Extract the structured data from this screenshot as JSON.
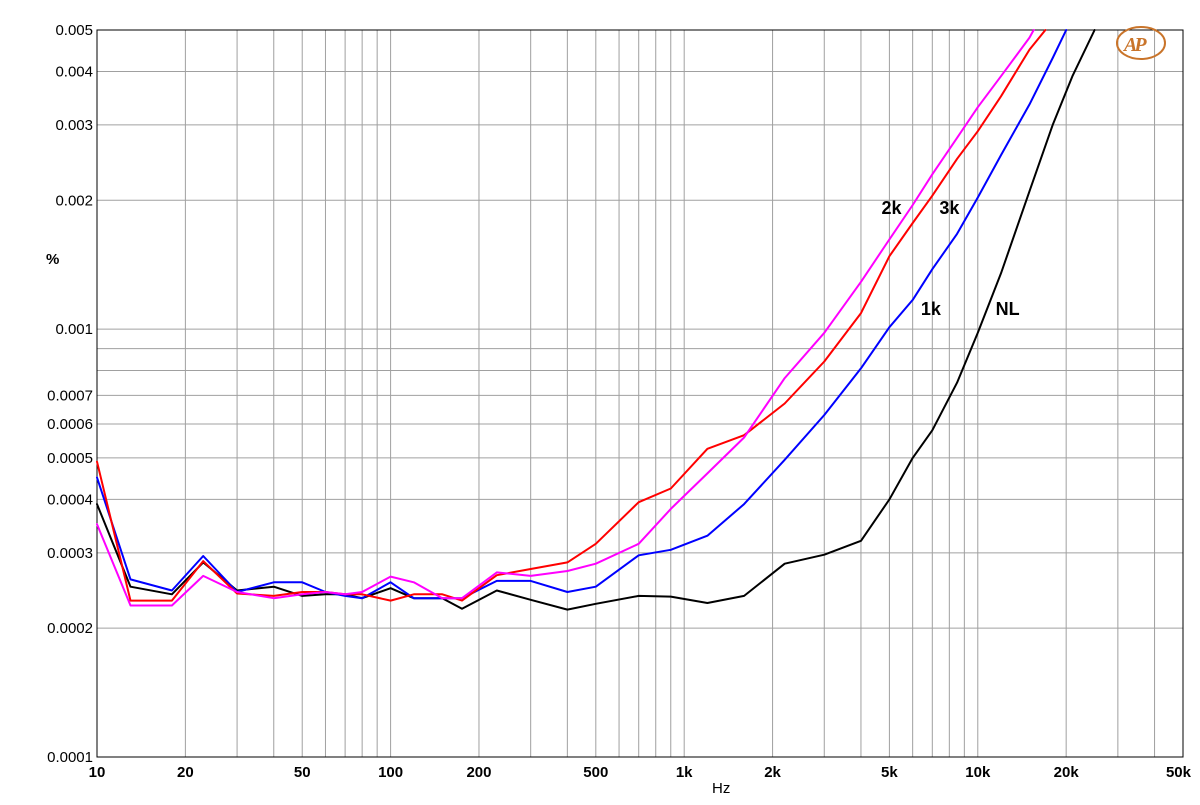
{
  "chart_data": {
    "type": "line",
    "title": "",
    "xlabel": "Hz",
    "ylabel": "%",
    "x_scale": "log",
    "y_scale": "log",
    "xlim": [
      10,
      50000
    ],
    "ylim": [
      0.0001,
      0.005
    ],
    "grid": true,
    "x_ticks": [
      {
        "value": 10,
        "label": "10"
      },
      {
        "value": 20,
        "label": "20"
      },
      {
        "value": 50,
        "label": "50"
      },
      {
        "value": 100,
        "label": "100"
      },
      {
        "value": 200,
        "label": "200"
      },
      {
        "value": 500,
        "label": "500"
      },
      {
        "value": 1000,
        "label": "1k"
      },
      {
        "value": 2000,
        "label": "2k"
      },
      {
        "value": 5000,
        "label": "5k"
      },
      {
        "value": 10000,
        "label": "10k"
      },
      {
        "value": 20000,
        "label": "20k"
      },
      {
        "value": 50000,
        "label": "50k"
      }
    ],
    "y_ticks": [
      {
        "value": 0.005,
        "label": "0.005"
      },
      {
        "value": 0.004,
        "label": "0.004"
      },
      {
        "value": 0.003,
        "label": "0.003"
      },
      {
        "value": 0.002,
        "label": "0.002"
      },
      {
        "value": 0.001,
        "label": "0.001"
      },
      {
        "value": 0.0007,
        "label": "0.0007"
      },
      {
        "value": 0.0006,
        "label": "0.0006"
      },
      {
        "value": 0.0005,
        "label": "0.0005"
      },
      {
        "value": 0.0004,
        "label": "0.0004"
      },
      {
        "value": 0.0003,
        "label": "0.0003"
      },
      {
        "value": 0.0002,
        "label": "0.0002"
      },
      {
        "value": 0.0001,
        "label": "0.0001"
      }
    ],
    "series": [
      {
        "name": "NL",
        "color": "#000000",
        "label_at": [
          11500,
          0.00108
        ],
        "points": [
          [
            10,
            0.00039
          ],
          [
            13,
            0.00025
          ],
          [
            18,
            0.00024
          ],
          [
            23,
            0.000285
          ],
          [
            30,
            0.000245
          ],
          [
            40,
            0.00025
          ],
          [
            50,
            0.000238
          ],
          [
            60,
            0.00024
          ],
          [
            70,
            0.00024
          ],
          [
            80,
            0.000235
          ],
          [
            100,
            0.000248
          ],
          [
            120,
            0.000235
          ],
          [
            150,
            0.000235
          ],
          [
            175,
            0.000222
          ],
          [
            230,
            0.000245
          ],
          [
            300,
            0.000233
          ],
          [
            400,
            0.000221
          ],
          [
            500,
            0.000228
          ],
          [
            700,
            0.000238
          ],
          [
            900,
            0.000237
          ],
          [
            1200,
            0.000229
          ],
          [
            1600,
            0.000238
          ],
          [
            2200,
            0.000283
          ],
          [
            3000,
            0.000297
          ],
          [
            4000,
            0.00032
          ],
          [
            5000,
            0.0004
          ],
          [
            6000,
            0.0005
          ],
          [
            7000,
            0.00058
          ],
          [
            8500,
            0.00075
          ],
          [
            10000,
            0.00098
          ],
          [
            12000,
            0.00135
          ],
          [
            15000,
            0.0021
          ],
          [
            18000,
            0.003
          ],
          [
            21000,
            0.0039
          ],
          [
            25000,
            0.005
          ]
        ]
      },
      {
        "name": "1k",
        "color": "#0000ff",
        "label_at": [
          6400,
          0.00108
        ],
        "points": [
          [
            10,
            0.00045
          ],
          [
            13,
            0.00026
          ],
          [
            18,
            0.000245
          ],
          [
            23,
            0.000295
          ],
          [
            30,
            0.000243
          ],
          [
            40,
            0.000256
          ],
          [
            50,
            0.000256
          ],
          [
            60,
            0.000243
          ],
          [
            70,
            0.000238
          ],
          [
            80,
            0.000235
          ],
          [
            100,
            0.000256
          ],
          [
            120,
            0.000235
          ],
          [
            150,
            0.000235
          ],
          [
            175,
            0.000235
          ],
          [
            230,
            0.000258
          ],
          [
            300,
            0.000258
          ],
          [
            400,
            0.000243
          ],
          [
            500,
            0.00025
          ],
          [
            700,
            0.000296
          ],
          [
            900,
            0.000305
          ],
          [
            1200,
            0.000329
          ],
          [
            1600,
            0.00039
          ],
          [
            2200,
            0.000495
          ],
          [
            3000,
            0.00063
          ],
          [
            4000,
            0.00081
          ],
          [
            5000,
            0.00101
          ],
          [
            6000,
            0.00117
          ],
          [
            7000,
            0.00138
          ],
          [
            8500,
            0.00167
          ],
          [
            10000,
            0.00203
          ],
          [
            12000,
            0.00255
          ],
          [
            15000,
            0.00335
          ],
          [
            18000,
            0.0043
          ],
          [
            20000,
            0.005
          ]
        ]
      },
      {
        "name": "3k",
        "color": "#ff0000",
        "label_at": [
          7400,
          0.00186
        ],
        "points": [
          [
            10,
            0.00049
          ],
          [
            13,
            0.000232
          ],
          [
            18,
            0.000232
          ],
          [
            23,
            0.000287
          ],
          [
            30,
            0.000241
          ],
          [
            40,
            0.000238
          ],
          [
            50,
            0.000243
          ],
          [
            60,
            0.000243
          ],
          [
            70,
            0.00024
          ],
          [
            80,
            0.00024
          ],
          [
            100,
            0.000232
          ],
          [
            120,
            0.00024
          ],
          [
            150,
            0.00024
          ],
          [
            175,
            0.000232
          ],
          [
            230,
            0.000266
          ],
          [
            300,
            0.000275
          ],
          [
            400,
            0.000285
          ],
          [
            500,
            0.000315
          ],
          [
            700,
            0.000394
          ],
          [
            900,
            0.000424
          ],
          [
            1200,
            0.000525
          ],
          [
            1600,
            0.000565
          ],
          [
            2200,
            0.00067
          ],
          [
            3000,
            0.00084
          ],
          [
            4000,
            0.00109
          ],
          [
            5000,
            0.00148
          ],
          [
            6000,
            0.00177
          ],
          [
            7000,
            0.00205
          ],
          [
            8500,
            0.0025
          ],
          [
            10000,
            0.0029
          ],
          [
            12000,
            0.0035
          ],
          [
            15000,
            0.0045
          ],
          [
            17000,
            0.005
          ]
        ]
      },
      {
        "name": "2k",
        "color": "#ff00ff",
        "label_at": [
          4700,
          0.00186
        ],
        "points": [
          [
            10,
            0.00035
          ],
          [
            13,
            0.000226
          ],
          [
            18,
            0.000226
          ],
          [
            23,
            0.000265
          ],
          [
            30,
            0.000243
          ],
          [
            40,
            0.000235
          ],
          [
            50,
            0.00024
          ],
          [
            60,
            0.000243
          ],
          [
            70,
            0.00024
          ],
          [
            80,
            0.000243
          ],
          [
            100,
            0.000264
          ],
          [
            120,
            0.000256
          ],
          [
            150,
            0.000235
          ],
          [
            175,
            0.000235
          ],
          [
            230,
            0.00027
          ],
          [
            300,
            0.000265
          ],
          [
            400,
            0.000272
          ],
          [
            500,
            0.000283
          ],
          [
            700,
            0.000315
          ],
          [
            900,
            0.00038
          ],
          [
            1200,
            0.00046
          ],
          [
            1600,
            0.000558
          ],
          [
            2200,
            0.000768
          ],
          [
            3000,
            0.00098
          ],
          [
            4000,
            0.00129
          ],
          [
            5000,
            0.00162
          ],
          [
            6000,
            0.00195
          ],
          [
            7000,
            0.0023
          ],
          [
            8500,
            0.0028
          ],
          [
            10000,
            0.0033
          ],
          [
            12000,
            0.0039
          ],
          [
            15000,
            0.0048
          ],
          [
            15500,
            0.005
          ]
        ]
      }
    ]
  },
  "logo": {
    "text": "AP"
  }
}
